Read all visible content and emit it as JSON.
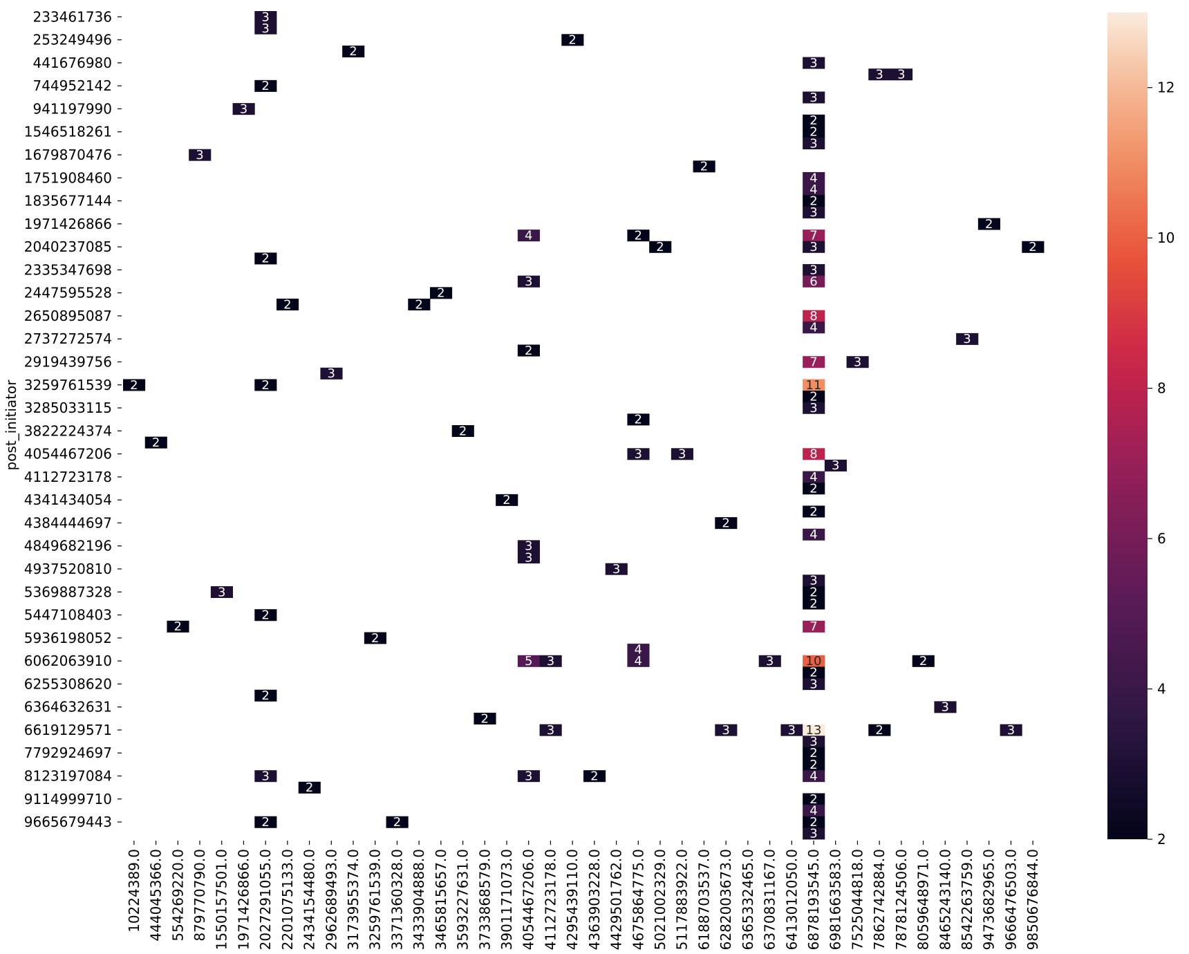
{
  "chart_data": {
    "type": "heatmap",
    "title": "",
    "ylabel": "post_initiator",
    "xlabel": "",
    "y_tick_labels": [
      "233461736",
      "253249496",
      "441676980",
      "744952142",
      "941197990",
      "1546518261",
      "1679870476",
      "1751908460",
      "1835677144",
      "1971426866",
      "2040237085",
      "2335347698",
      "2447595528",
      "2650895087",
      "2737272574",
      "2919439756",
      "3259761539",
      "3285033115",
      "3822224374",
      "4054467206",
      "4112723178",
      "4341434054",
      "4384444697",
      "4849682196",
      "4937520810",
      "5369887328",
      "5447108403",
      "5936198052",
      "6062063910",
      "6255308620",
      "6364632631",
      "6619129571",
      "7792924697",
      "8123197084",
      "9114999710",
      "9665679443"
    ],
    "x_tick_labels": [
      "10224389.0",
      "444045366.0",
      "554269220.0",
      "879770790.0",
      "1550157501.0",
      "1971426866.0",
      "2027291055.0",
      "2201075133.0",
      "2434154480.0",
      "2962689493.0",
      "3173955374.0",
      "3259761539.0",
      "3371360328.0",
      "3433904888.0",
      "3465815657.0",
      "3593227631.0",
      "3733868579.0",
      "3901171073.0",
      "4054467206.0",
      "4112723178.0",
      "4295439110.0",
      "4363903228.0",
      "4429501762.0",
      "4675864775.0",
      "5021002329.0",
      "5117883922.0",
      "6188703537.0",
      "6282003673.0",
      "6365332465.0",
      "6370831167.0",
      "6413012050.0",
      "6878193545.0",
      "6981663583.0",
      "7525044818.0",
      "7862742884.0",
      "7878124506.0",
      "8059648971.0",
      "8465243140.0",
      "8542263759.0",
      "9473682965.0",
      "9666476503.0",
      "9850676844.0"
    ],
    "rows": 72,
    "cols": 42,
    "cells": [
      [
        0,
        6,
        3
      ],
      [
        1,
        6,
        3
      ],
      [
        2,
        20,
        2
      ],
      [
        3,
        10,
        2
      ],
      [
        4,
        31,
        3
      ],
      [
        5,
        34,
        3
      ],
      [
        5,
        35,
        3
      ],
      [
        6,
        6,
        2
      ],
      [
        7,
        31,
        3
      ],
      [
        8,
        5,
        3
      ],
      [
        9,
        31,
        2
      ],
      [
        10,
        31,
        2
      ],
      [
        11,
        31,
        3
      ],
      [
        12,
        3,
        3
      ],
      [
        13,
        26,
        2
      ],
      [
        14,
        31,
        4
      ],
      [
        15,
        31,
        4
      ],
      [
        16,
        31,
        2
      ],
      [
        17,
        31,
        3
      ],
      [
        18,
        39,
        2
      ],
      [
        19,
        18,
        4
      ],
      [
        19,
        23,
        2
      ],
      [
        19,
        31,
        7
      ],
      [
        20,
        24,
        2
      ],
      [
        20,
        31,
        3
      ],
      [
        20,
        41,
        2
      ],
      [
        21,
        6,
        2
      ],
      [
        22,
        31,
        3
      ],
      [
        23,
        18,
        3
      ],
      [
        23,
        31,
        6
      ],
      [
        24,
        14,
        2
      ],
      [
        25,
        7,
        2
      ],
      [
        25,
        13,
        2
      ],
      [
        26,
        31,
        8
      ],
      [
        27,
        31,
        4
      ],
      [
        28,
        38,
        3
      ],
      [
        29,
        18,
        2
      ],
      [
        30,
        31,
        7
      ],
      [
        30,
        33,
        3
      ],
      [
        31,
        9,
        3
      ],
      [
        32,
        0,
        2
      ],
      [
        32,
        6,
        2
      ],
      [
        32,
        31,
        11
      ],
      [
        33,
        31,
        2
      ],
      [
        34,
        31,
        3
      ],
      [
        35,
        23,
        2
      ],
      [
        36,
        15,
        2
      ],
      [
        37,
        1,
        2
      ],
      [
        38,
        23,
        3
      ],
      [
        38,
        25,
        3
      ],
      [
        38,
        31,
        8
      ],
      [
        39,
        32,
        3
      ],
      [
        40,
        31,
        4
      ],
      [
        41,
        31,
        2
      ],
      [
        42,
        17,
        2
      ],
      [
        43,
        31,
        2
      ],
      [
        44,
        27,
        2
      ],
      [
        45,
        31,
        4
      ],
      [
        46,
        18,
        3
      ],
      [
        47,
        18,
        3
      ],
      [
        48,
        22,
        3
      ],
      [
        49,
        31,
        3
      ],
      [
        50,
        4,
        3
      ],
      [
        50,
        31,
        2
      ],
      [
        51,
        31,
        2
      ],
      [
        52,
        6,
        2
      ],
      [
        53,
        2,
        2
      ],
      [
        53,
        31,
        7
      ],
      [
        54,
        11,
        2
      ],
      [
        55,
        23,
        4
      ],
      [
        56,
        18,
        5
      ],
      [
        56,
        19,
        3
      ],
      [
        56,
        23,
        4
      ],
      [
        56,
        29,
        3
      ],
      [
        56,
        31,
        10
      ],
      [
        56,
        36,
        2
      ],
      [
        57,
        31,
        2
      ],
      [
        58,
        31,
        3
      ],
      [
        59,
        6,
        2
      ],
      [
        60,
        37,
        3
      ],
      [
        61,
        16,
        2
      ],
      [
        62,
        19,
        3
      ],
      [
        62,
        27,
        3
      ],
      [
        62,
        30,
        3
      ],
      [
        62,
        31,
        13
      ],
      [
        62,
        34,
        2
      ],
      [
        62,
        40,
        3
      ],
      [
        63,
        31,
        3
      ],
      [
        64,
        31,
        2
      ],
      [
        65,
        31,
        2
      ],
      [
        66,
        6,
        3
      ],
      [
        66,
        18,
        3
      ],
      [
        66,
        21,
        2
      ],
      [
        66,
        31,
        4
      ],
      [
        67,
        8,
        2
      ],
      [
        68,
        31,
        2
      ],
      [
        69,
        31,
        4
      ],
      [
        70,
        6,
        2
      ],
      [
        70,
        12,
        2
      ],
      [
        70,
        31,
        2
      ],
      [
        71,
        31,
        3
      ]
    ],
    "colorbar": {
      "min": 2,
      "max": 13,
      "ticks": [
        2,
        4,
        6,
        8,
        10,
        12
      ]
    },
    "colormap": "rocket",
    "grid": false
  }
}
